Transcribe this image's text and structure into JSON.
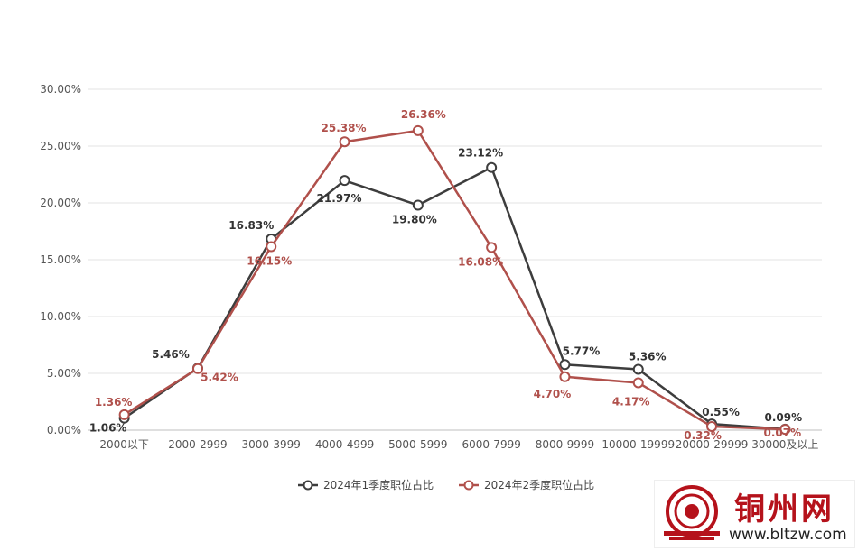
{
  "chart_data": {
    "type": "line",
    "title": "",
    "xlabel": "",
    "ylabel": "",
    "ylim": [
      0,
      30
    ],
    "y_ticks": [
      "0.00%",
      "5.00%",
      "10.00%",
      "15.00%",
      "20.00%",
      "25.00%",
      "30.00%"
    ],
    "grid": true,
    "legend_position": "bottom-center",
    "categories": [
      "2000以下",
      "2000-2999",
      "3000-3999",
      "4000-4999",
      "5000-5999",
      "6000-7999",
      "8000-9999",
      "10000-19999",
      "20000-29999",
      "30000及以上"
    ],
    "series": [
      {
        "name": "2024年1季度职位占比",
        "color": "#3d3d3d",
        "values": [
          1.06,
          5.46,
          16.83,
          21.97,
          19.8,
          23.12,
          5.77,
          5.36,
          0.55,
          0.09
        ],
        "labels": [
          "1.06%",
          "5.46%",
          "16.83%",
          "21.97%",
          "19.80%",
          "23.12%",
          "5.77%",
          "5.36%",
          "0.55%",
          "0.09%"
        ]
      },
      {
        "name": "2024年2季度职位占比",
        "color": "#b0504b",
        "values": [
          1.36,
          5.42,
          16.15,
          25.38,
          26.36,
          16.08,
          4.7,
          4.17,
          0.32,
          0.07
        ],
        "labels": [
          "1.36%",
          "5.42%",
          "16.15%",
          "25.38%",
          "26.36%",
          "16.08%",
          "4.70%",
          "4.17%",
          "0.32%",
          "0.07%"
        ]
      }
    ]
  },
  "watermark": {
    "name": "铜州网",
    "url": "www.bltzw.com",
    "brand_color": "#b5121b"
  }
}
